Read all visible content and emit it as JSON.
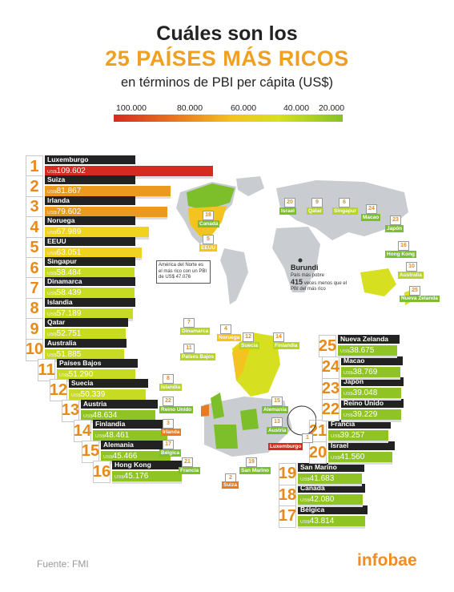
{
  "header": {
    "title_line1": "Cuáles son los",
    "title_line2": "25 PAÍSES MÁS RICOS",
    "subtitle": "en términos de PBI per cápita (US$)"
  },
  "scale": {
    "labels": [
      "100.000",
      "80.000",
      "60.000",
      "40.000",
      "20.000"
    ],
    "colors": [
      "#d42a1f",
      "#e97a1f",
      "#f3c320",
      "#d6e020",
      "#86c225"
    ]
  },
  "value_prefix": "US$",
  "chart_data": {
    "type": "bar",
    "title": "25 PAÍSES MÁS RICOS",
    "ylabel": "en términos de PBI per cápita (US$)",
    "series": [
      {
        "rank": "1",
        "name": "Luxemburgo",
        "label": "109.602",
        "value": 109602
      },
      {
        "rank": "2",
        "name": "Suiza",
        "label": "81.867",
        "value": 81867
      },
      {
        "rank": "3",
        "name": "Irlanda",
        "label": "79.602",
        "value": 79602
      },
      {
        "rank": "4",
        "name": "Noruega",
        "label": "67.989",
        "value": 67989
      },
      {
        "rank": "5",
        "name": "EEUU",
        "label": "63.051",
        "value": 63051
      },
      {
        "rank": "6",
        "name": "Singapur",
        "label": "58.484",
        "value": 58484
      },
      {
        "rank": "7",
        "name": "Dinamarca",
        "label": "58.439",
        "value": 58439
      },
      {
        "rank": "8",
        "name": "Islandia",
        "label": "57.189",
        "value": 57189
      },
      {
        "rank": "9",
        "name": "Qatar",
        "label": "52.751",
        "value": 52751
      },
      {
        "rank": "10",
        "name": "Australia",
        "label": "51.885",
        "value": 51885
      },
      {
        "rank": "11",
        "name": "Países Bajos",
        "label": "51.290",
        "value": 51290
      },
      {
        "rank": "12",
        "name": "Suecia",
        "label": "50.339",
        "value": 50339
      },
      {
        "rank": "13",
        "name": "Austria",
        "label": "48.634",
        "value": 48634
      },
      {
        "rank": "14",
        "name": "Finlandia",
        "label": "48.461",
        "value": 48461
      },
      {
        "rank": "15",
        "name": "Alemania",
        "label": "45.466",
        "value": 45466
      },
      {
        "rank": "16",
        "name": "Hong Kong",
        "label": "45.176",
        "value": 45176
      },
      {
        "rank": "17",
        "name": "Bélgica",
        "label": "43.814",
        "value": 43814
      },
      {
        "rank": "18",
        "name": "Canadá",
        "label": "42.080",
        "value": 42080
      },
      {
        "rank": "19",
        "name": "San Marino",
        "label": "41.683",
        "value": 41683
      },
      {
        "rank": "20",
        "name": "Israel",
        "label": "41.560",
        "value": 41560
      },
      {
        "rank": "21",
        "name": "Francia",
        "label": "39.257",
        "value": 39257
      },
      {
        "rank": "22",
        "name": "Reino Unido",
        "label": "39.229",
        "value": 39229
      },
      {
        "rank": "23",
        "name": "Japón",
        "label": "39.048",
        "value": 39048
      },
      {
        "rank": "24",
        "name": "Macao",
        "label": "38.769",
        "value": 38769
      },
      {
        "rank": "25",
        "name": "Nueva Zelanda",
        "label": "38.675",
        "value": 38675
      }
    ]
  },
  "world_map": {
    "tags": [
      {
        "n": "18",
        "label": "Canadá"
      },
      {
        "n": "5",
        "label": "EEUU"
      },
      {
        "n": "20",
        "label": "Israel"
      },
      {
        "n": "9",
        "label": "Qatar"
      },
      {
        "n": "6",
        "label": "Singapur"
      },
      {
        "n": "24",
        "label": "Macao"
      },
      {
        "n": "23",
        "label": "Japón"
      },
      {
        "n": "16",
        "label": "Hong Kong"
      },
      {
        "n": "10",
        "label": "Australia"
      },
      {
        "n": "25",
        "label": "Nueva Zelanda"
      }
    ],
    "usa_note": "América del Norte es el más rico con un PBI de US$ 47.076",
    "burundi_title": "Burundi",
    "burundi_note_a": "País más pobre",
    "burundi_note_value": "415",
    "burundi_note_b": "veces menos que el PBI del más rico"
  },
  "europe_map": {
    "tags": [
      {
        "n": "7",
        "label": "Dinamarca"
      },
      {
        "n": "4",
        "label": "Noruega"
      },
      {
        "n": "12",
        "label": "Suecia"
      },
      {
        "n": "14",
        "label": "Finlandia"
      },
      {
        "n": "11",
        "label": "Países Bajos"
      },
      {
        "n": "8",
        "label": "Islandia"
      },
      {
        "n": "22",
        "label": "Reino Unido"
      },
      {
        "n": "15",
        "label": "Alemania"
      },
      {
        "n": "13",
        "label": "Austria"
      },
      {
        "n": "3",
        "label": "Irlanda"
      },
      {
        "n": "17",
        "label": "Bélgica"
      },
      {
        "n": "1",
        "label": "Luxemburgo"
      },
      {
        "n": "21",
        "label": "Francia"
      },
      {
        "n": "19",
        "label": "San Marino"
      },
      {
        "n": "2",
        "label": "Suiza"
      }
    ]
  },
  "footer": {
    "source": "Fuente: FMI",
    "brand": "infobae"
  }
}
